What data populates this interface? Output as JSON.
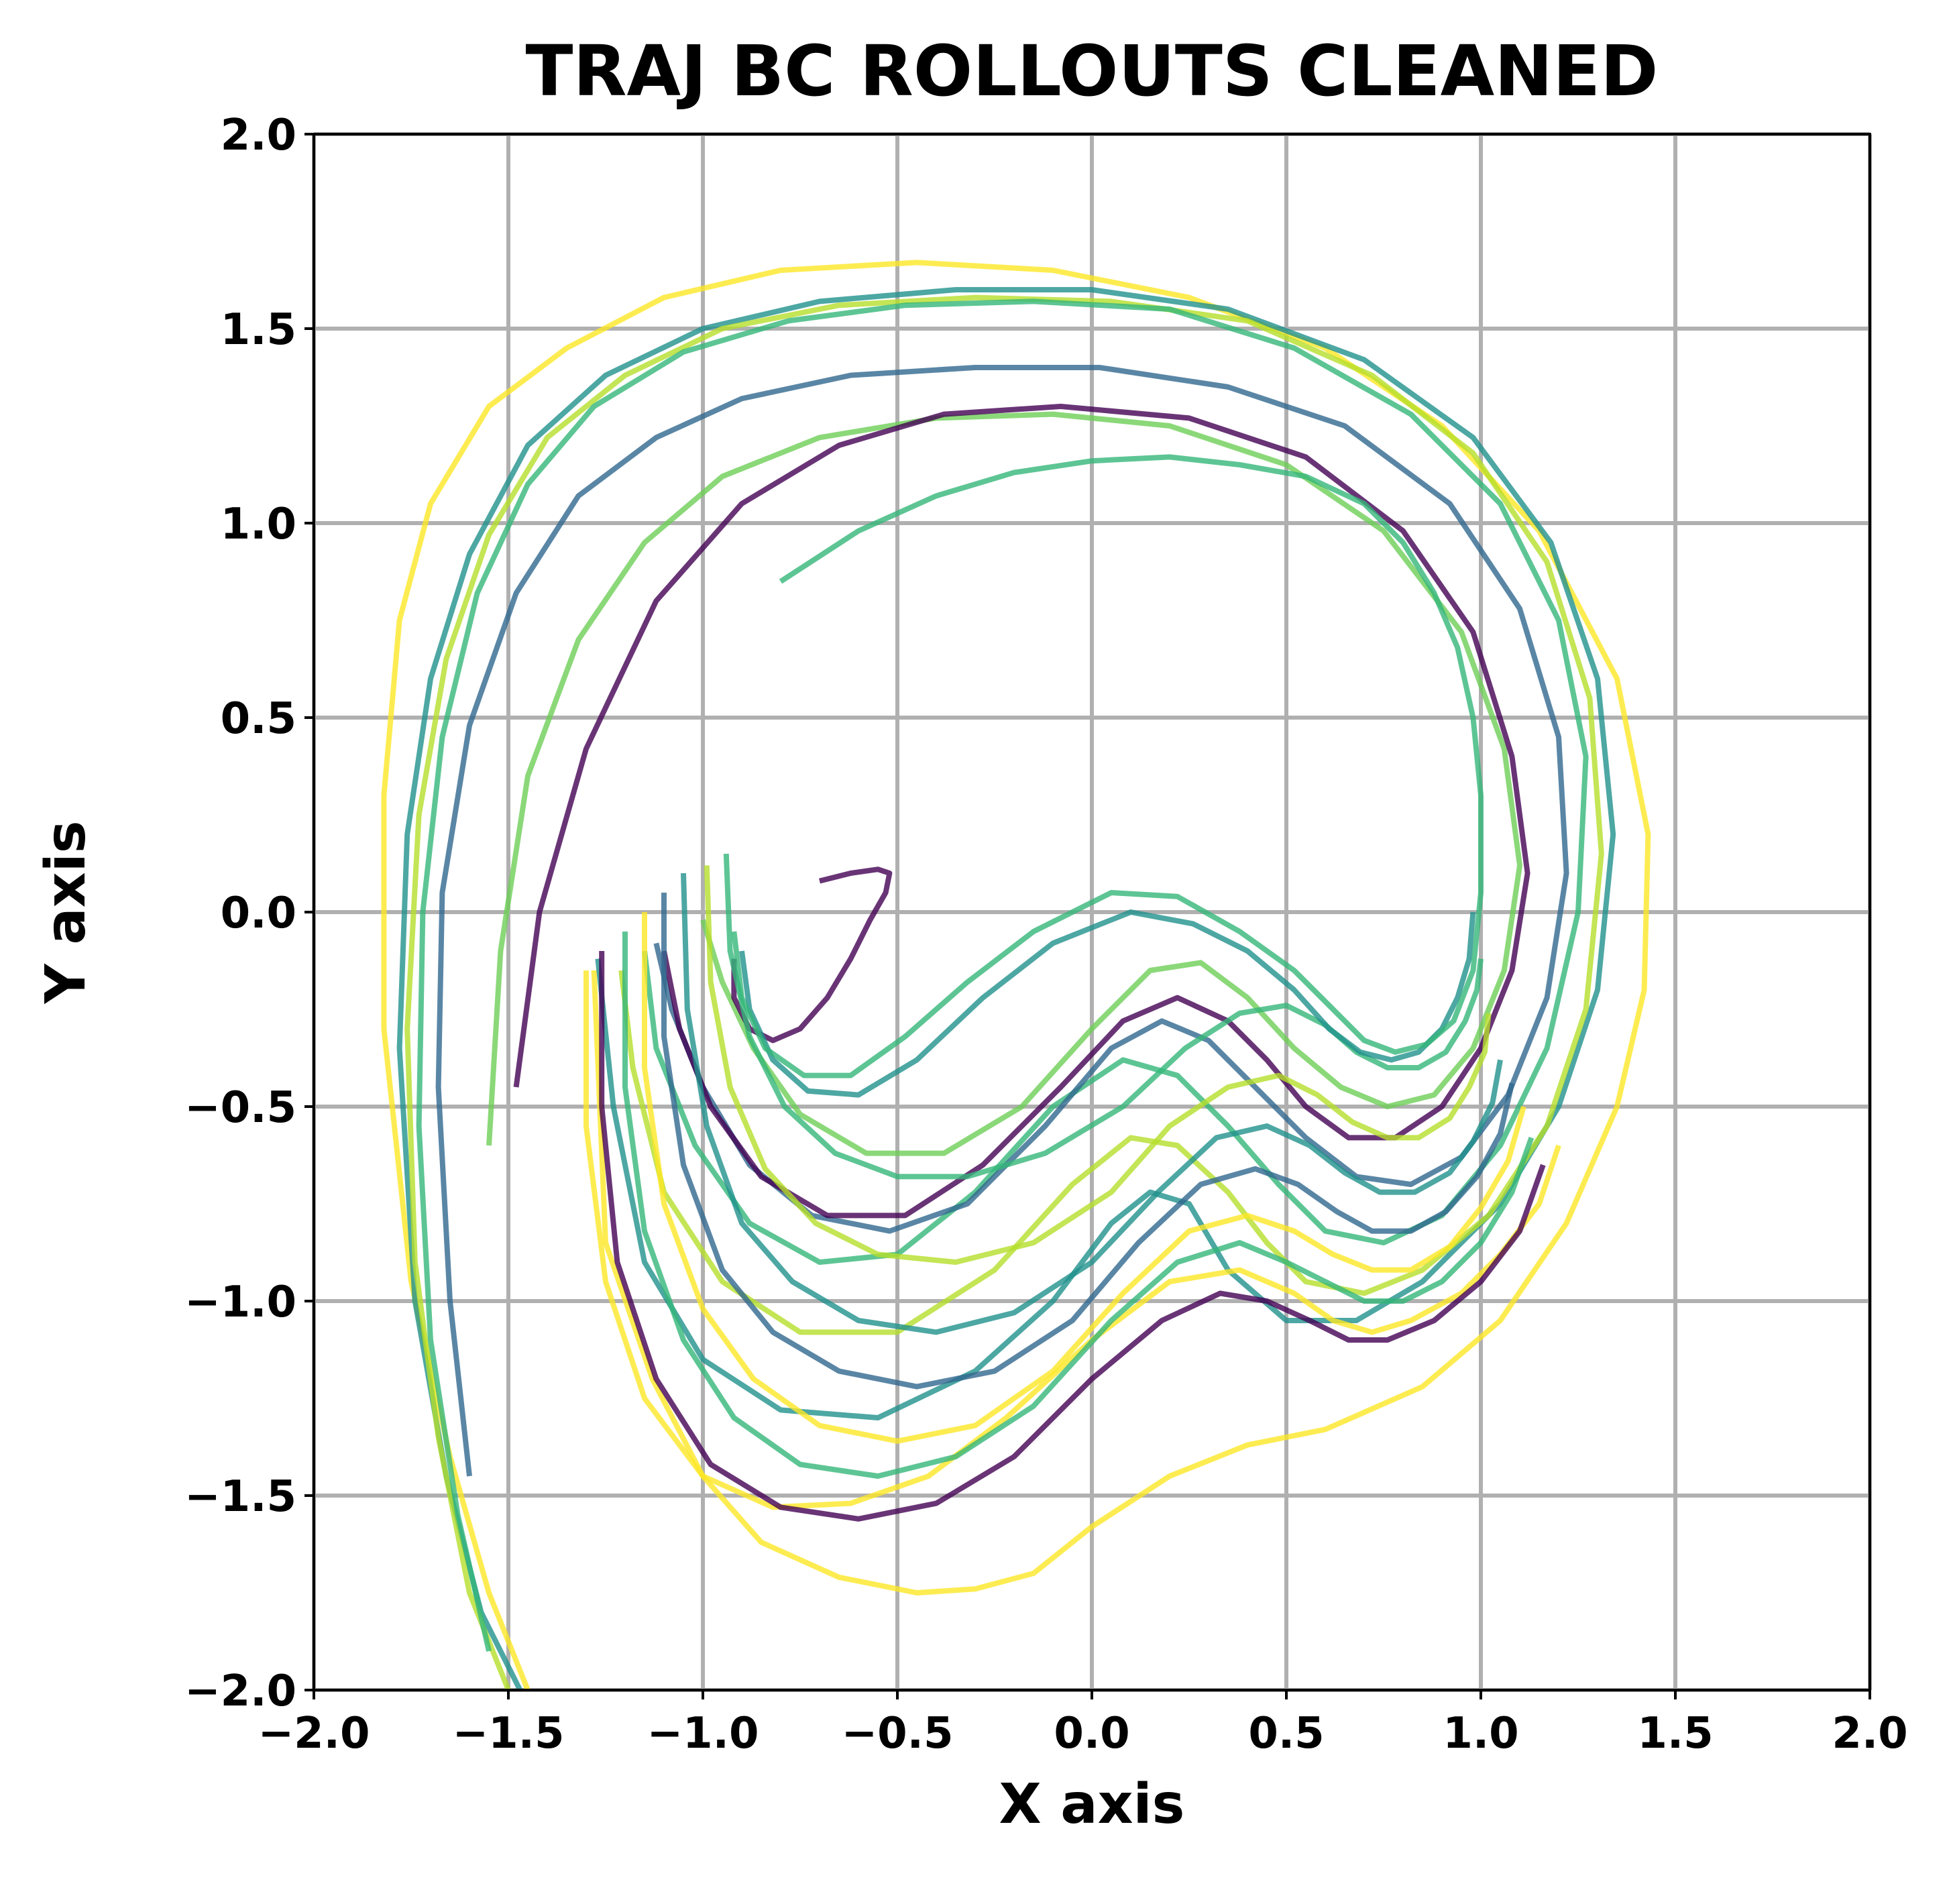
{
  "chart_data": {
    "type": "line",
    "title": "TRAJ BC ROLLOUTS CLEANED",
    "xlabel": "X axis",
    "ylabel": "Y axis",
    "xlim": [
      -2.0,
      2.0
    ],
    "ylim": [
      -2.0,
      2.0
    ],
    "xticks": [
      "−2.0",
      "−1.5",
      "−1.0",
      "−0.5",
      "0.0",
      "0.5",
      "1.0",
      "1.5",
      "2.0"
    ],
    "yticks": [
      "−2.0",
      "−1.5",
      "−1.0",
      "−0.5",
      "0.0",
      "0.5",
      "1.0",
      "1.5",
      "2.0"
    ],
    "grid": true,
    "colormap": "viridis",
    "colors": {
      "purple": "#440154",
      "blue": "#31688e",
      "teal": "#21918c",
      "green": "#35b779",
      "lightgreen": "#6ece58",
      "lime": "#b5de2b",
      "yellow": "#fde725",
      "gold": "#e8b82a",
      "grid": "#b0b0b0"
    },
    "series": [
      {
        "color": "#fde725",
        "x": [
          -1.45,
          -1.55,
          -1.65,
          -1.75,
          -1.82,
          -1.82,
          -1.78,
          -1.7,
          -1.55,
          -1.35,
          -1.1,
          -0.8,
          -0.45,
          -0.1,
          0.25,
          0.6,
          0.9,
          1.15,
          1.35,
          1.43,
          1.42,
          1.35,
          1.22,
          1.05,
          0.85,
          0.6,
          0.4,
          0.2,
          0.0,
          -0.15,
          -0.3,
          -0.45,
          -0.65,
          -0.85,
          -1.0,
          -1.13,
          -1.25,
          -1.28
        ],
        "y": [
          -2.0,
          -1.75,
          -1.4,
          -0.95,
          -0.3,
          0.3,
          0.75,
          1.05,
          1.3,
          1.45,
          1.58,
          1.65,
          1.67,
          1.65,
          1.58,
          1.45,
          1.25,
          0.98,
          0.6,
          0.2,
          -0.2,
          -0.5,
          -0.8,
          -1.05,
          -1.22,
          -1.33,
          -1.37,
          -1.45,
          -1.58,
          -1.7,
          -1.74,
          -1.75,
          -1.71,
          -1.62,
          -1.45,
          -1.2,
          -0.85,
          -0.15
        ]
      },
      {
        "color": "#21918c",
        "x": [
          -1.47,
          -1.57,
          -1.66,
          -1.74,
          -1.78,
          -1.76,
          -1.7,
          -1.6,
          -1.45,
          -1.25,
          -1.0,
          -0.7,
          -0.35,
          0.0,
          0.35,
          0.7,
          0.98,
          1.18,
          1.3,
          1.34,
          1.3,
          1.2,
          1.05,
          0.85,
          0.68,
          0.5,
          0.35,
          0.25,
          0.15,
          0.05,
          -0.1,
          -0.3,
          -0.55,
          -0.8,
          -1.0,
          -1.15,
          -1.23,
          -1.27
        ],
        "y": [
          -2.0,
          -1.8,
          -1.45,
          -1.0,
          -0.35,
          0.2,
          0.6,
          0.92,
          1.2,
          1.38,
          1.5,
          1.57,
          1.6,
          1.6,
          1.55,
          1.42,
          1.22,
          0.95,
          0.6,
          0.2,
          -0.2,
          -0.5,
          -0.75,
          -0.95,
          -1.05,
          -1.05,
          -0.92,
          -0.75,
          -0.72,
          -0.8,
          -1.0,
          -1.18,
          -1.3,
          -1.28,
          -1.15,
          -0.9,
          -0.5,
          -0.12
        ]
      },
      {
        "color": "#b5de2b",
        "x": [
          -1.5,
          -1.6,
          -1.68,
          -1.74,
          -1.76,
          -1.73,
          -1.66,
          -1.55,
          -1.4,
          -1.2,
          -0.95,
          -0.65,
          -0.3,
          0.05,
          0.4,
          0.72,
          0.98,
          1.17,
          1.28,
          1.31,
          1.27,
          1.17,
          1.02,
          0.85,
          0.7,
          0.55,
          0.45,
          0.35,
          0.22,
          0.1,
          -0.05,
          -0.25,
          -0.5,
          -0.75,
          -0.95,
          -1.1,
          -1.18,
          -1.21
        ],
        "y": [
          -2.0,
          -1.75,
          -1.35,
          -0.9,
          -0.3,
          0.25,
          0.65,
          0.97,
          1.22,
          1.38,
          1.5,
          1.56,
          1.58,
          1.57,
          1.52,
          1.38,
          1.18,
          0.9,
          0.55,
          0.15,
          -0.25,
          -0.55,
          -0.78,
          -0.92,
          -0.98,
          -0.95,
          -0.85,
          -0.72,
          -0.6,
          -0.58,
          -0.7,
          -0.92,
          -1.08,
          -1.08,
          -0.95,
          -0.72,
          -0.4,
          -0.15
        ]
      },
      {
        "color": "#35b779",
        "x": [
          -1.55,
          -1.63,
          -1.7,
          -1.73,
          -1.72,
          -1.67,
          -1.58,
          -1.45,
          -1.28,
          -1.05,
          -0.78,
          -0.48,
          -0.15,
          0.2,
          0.52,
          0.82,
          1.05,
          1.2,
          1.27,
          1.25,
          1.17,
          1.05,
          0.9,
          0.75,
          0.6,
          0.48,
          0.35,
          0.22,
          0.08,
          -0.1,
          -0.3,
          -0.5,
          -0.7,
          -0.88,
          -1.02,
          -1.12,
          -1.15
        ],
        "y": [
          -1.9,
          -1.55,
          -1.1,
          -0.55,
          0.0,
          0.45,
          0.82,
          1.1,
          1.3,
          1.44,
          1.52,
          1.56,
          1.57,
          1.55,
          1.45,
          1.28,
          1.05,
          0.75,
          0.4,
          0.0,
          -0.35,
          -0.6,
          -0.78,
          -0.85,
          -0.82,
          -0.7,
          -0.55,
          -0.42,
          -0.38,
          -0.5,
          -0.72,
          -0.88,
          -0.9,
          -0.8,
          -0.6,
          -0.35,
          -0.1
        ]
      },
      {
        "color": "#31688e",
        "x": [
          -1.6,
          -1.65,
          -1.68,
          -1.67,
          -1.6,
          -1.48,
          -1.32,
          -1.12,
          -0.9,
          -0.62,
          -0.3,
          0.02,
          0.35,
          0.65,
          0.92,
          1.1,
          1.2,
          1.22,
          1.17,
          1.07,
          0.95,
          0.82,
          0.68,
          0.55,
          0.42,
          0.3,
          0.18,
          0.05,
          -0.12,
          -0.32,
          -0.52,
          -0.72,
          -0.88,
          -1.0,
          -1.08,
          -1.12
        ],
        "y": [
          -1.45,
          -1.0,
          -0.45,
          0.05,
          0.48,
          0.82,
          1.07,
          1.22,
          1.32,
          1.38,
          1.4,
          1.4,
          1.35,
          1.25,
          1.05,
          0.78,
          0.45,
          0.1,
          -0.22,
          -0.47,
          -0.63,
          -0.7,
          -0.68,
          -0.58,
          -0.45,
          -0.33,
          -0.28,
          -0.35,
          -0.55,
          -0.75,
          -0.82,
          -0.78,
          -0.65,
          -0.45,
          -0.25,
          -0.08
        ]
      },
      {
        "color": "#6ece58",
        "x": [
          -1.55,
          -1.52,
          -1.45,
          -1.32,
          -1.15,
          -0.95,
          -0.7,
          -0.4,
          -0.1,
          0.2,
          0.5,
          0.75,
          0.95,
          1.06,
          1.1,
          1.06,
          0.98,
          0.88,
          0.76,
          0.64,
          0.52,
          0.4,
          0.28,
          0.15,
          0.0,
          -0.18,
          -0.38,
          -0.58,
          -0.75,
          -0.87,
          -0.95,
          -1.0
        ],
        "y": [
          -0.6,
          -0.1,
          0.35,
          0.7,
          0.95,
          1.12,
          1.22,
          1.27,
          1.28,
          1.25,
          1.15,
          0.98,
          0.72,
          0.42,
          0.12,
          -0.15,
          -0.35,
          -0.47,
          -0.5,
          -0.45,
          -0.35,
          -0.22,
          -0.13,
          -0.15,
          -0.3,
          -0.5,
          -0.62,
          -0.62,
          -0.52,
          -0.35,
          -0.18,
          -0.02
        ]
      },
      {
        "color": "#440154",
        "x": [
          -1.48,
          -1.42,
          -1.3,
          -1.12,
          -0.9,
          -0.65,
          -0.38,
          -0.08,
          0.25,
          0.55,
          0.8,
          0.98,
          1.08,
          1.12,
          1.08,
          1.0,
          0.9,
          0.78,
          0.66,
          0.55,
          0.45,
          0.35,
          0.22,
          0.08,
          -0.08,
          -0.28,
          -0.48,
          -0.68,
          -0.85,
          -0.98,
          -1.06,
          -1.1
        ],
        "y": [
          -0.45,
          0.0,
          0.42,
          0.8,
          1.05,
          1.2,
          1.28,
          1.3,
          1.27,
          1.17,
          0.98,
          0.72,
          0.4,
          0.1,
          -0.15,
          -0.35,
          -0.5,
          -0.58,
          -0.58,
          -0.5,
          -0.38,
          -0.28,
          -0.22,
          -0.28,
          -0.45,
          -0.65,
          -0.78,
          -0.78,
          -0.68,
          -0.5,
          -0.3,
          -0.1
        ]
      },
      {
        "color": "#440154",
        "x": [
          -0.92,
          -0.92,
          -0.88,
          -0.82,
          -0.75,
          -0.68,
          -0.62,
          -0.57,
          -0.53,
          -0.52,
          -0.55,
          -0.62,
          -0.7
        ],
        "y": [
          -0.12,
          -0.22,
          -0.3,
          -0.33,
          -0.3,
          -0.22,
          -0.12,
          -0.02,
          0.05,
          0.1,
          0.11,
          0.1,
          0.08
        ]
      },
      {
        "color": "#fde725",
        "x": [
          -1.3,
          -1.3,
          -1.25,
          -1.15,
          -1.0,
          -0.82,
          -0.62,
          -0.42,
          -0.22,
          0.0,
          0.2,
          0.38,
          0.52,
          0.62,
          0.72,
          0.82,
          0.95,
          1.05,
          1.15,
          1.2
        ],
        "y": [
          -0.15,
          -0.55,
          -0.95,
          -1.25,
          -1.45,
          -1.53,
          -1.52,
          -1.45,
          -1.3,
          -1.1,
          -0.95,
          -0.92,
          -0.98,
          -1.05,
          -1.08,
          -1.05,
          -0.98,
          -0.88,
          -0.75,
          -0.6
        ]
      },
      {
        "color": "#440154",
        "x": [
          -1.26,
          -1.26,
          -1.22,
          -1.12,
          -0.98,
          -0.8,
          -0.6,
          -0.4,
          -0.2,
          0.0,
          0.18,
          0.33,
          0.45,
          0.56,
          0.66,
          0.76,
          0.88,
          1.0,
          1.1,
          1.16
        ],
        "y": [
          -0.1,
          -0.5,
          -0.9,
          -1.2,
          -1.42,
          -1.53,
          -1.56,
          -1.52,
          -1.4,
          -1.2,
          -1.05,
          -0.98,
          -1.0,
          -1.05,
          -1.1,
          -1.1,
          -1.05,
          -0.95,
          -0.82,
          -0.65
        ]
      },
      {
        "color": "#35b779",
        "x": [
          -1.2,
          -1.2,
          -1.15,
          -1.05,
          -0.92,
          -0.75,
          -0.55,
          -0.35,
          -0.15,
          0.05,
          0.22,
          0.38,
          0.5,
          0.6,
          0.7,
          0.8,
          0.9,
          1.0,
          1.08,
          1.13
        ],
        "y": [
          -0.05,
          -0.45,
          -0.82,
          -1.1,
          -1.3,
          -1.42,
          -1.45,
          -1.4,
          -1.27,
          -1.05,
          -0.9,
          -0.85,
          -0.9,
          -0.95,
          -1.0,
          -1.0,
          -0.95,
          -0.85,
          -0.72,
          -0.58
        ]
      },
      {
        "color": "#fde725",
        "x": [
          -1.15,
          -1.15,
          -1.1,
          -1.0,
          -0.87,
          -0.7,
          -0.5,
          -0.3,
          -0.1,
          0.08,
          0.25,
          0.4,
          0.52,
          0.62,
          0.72,
          0.82,
          0.92,
          1.0,
          1.07,
          1.11
        ],
        "y": [
          0.0,
          -0.4,
          -0.75,
          -1.02,
          -1.2,
          -1.32,
          -1.36,
          -1.32,
          -1.18,
          -0.98,
          -0.82,
          -0.78,
          -0.82,
          -0.88,
          -0.92,
          -0.92,
          -0.86,
          -0.76,
          -0.64,
          -0.5
        ]
      },
      {
        "color": "#31688e",
        "x": [
          -1.1,
          -1.1,
          -1.05,
          -0.95,
          -0.82,
          -0.65,
          -0.45,
          -0.25,
          -0.05,
          0.12,
          0.28,
          0.42,
          0.53,
          0.63,
          0.72,
          0.82,
          0.91,
          0.99,
          1.05,
          1.08
        ],
        "y": [
          0.05,
          -0.32,
          -0.65,
          -0.92,
          -1.08,
          -1.18,
          -1.22,
          -1.18,
          -1.05,
          -0.85,
          -0.7,
          -0.66,
          -0.7,
          -0.77,
          -0.82,
          -0.82,
          -0.77,
          -0.68,
          -0.57,
          -0.44
        ]
      },
      {
        "color": "#21918c",
        "x": [
          -1.05,
          -1.04,
          -0.99,
          -0.9,
          -0.77,
          -0.6,
          -0.4,
          -0.2,
          0.0,
          0.17,
          0.32,
          0.45,
          0.56,
          0.65,
          0.74,
          0.83,
          0.92,
          0.98,
          1.03,
          1.05
        ],
        "y": [
          0.1,
          -0.25,
          -0.55,
          -0.8,
          -0.95,
          -1.05,
          -1.08,
          -1.03,
          -0.9,
          -0.72,
          -0.58,
          -0.55,
          -0.6,
          -0.67,
          -0.72,
          -0.72,
          -0.67,
          -0.59,
          -0.49,
          -0.38
        ]
      },
      {
        "color": "#b5de2b",
        "x": [
          -0.99,
          -0.98,
          -0.93,
          -0.84,
          -0.71,
          -0.55,
          -0.35,
          -0.15,
          0.05,
          0.2,
          0.35,
          0.48,
          0.58,
          0.67,
          0.76,
          0.84,
          0.92,
          0.97,
          1.01,
          1.02
        ],
        "y": [
          0.12,
          -0.18,
          -0.45,
          -0.66,
          -0.8,
          -0.88,
          -0.9,
          -0.85,
          -0.72,
          -0.55,
          -0.45,
          -0.42,
          -0.47,
          -0.54,
          -0.58,
          -0.58,
          -0.53,
          -0.45,
          -0.36,
          -0.26
        ]
      },
      {
        "color": "#35b779",
        "x": [
          -0.94,
          -0.93,
          -0.88,
          -0.79,
          -0.66,
          -0.5,
          -0.32,
          -0.12,
          0.08,
          0.24,
          0.38,
          0.5,
          0.6,
          0.68,
          0.76,
          0.84,
          0.91,
          0.96,
          0.99,
          1.0
        ],
        "y": [
          0.15,
          -0.1,
          -0.32,
          -0.5,
          -0.62,
          -0.68,
          -0.68,
          -0.62,
          -0.5,
          -0.35,
          -0.26,
          -0.24,
          -0.29,
          -0.36,
          -0.4,
          -0.4,
          -0.36,
          -0.28,
          -0.2,
          -0.12
        ]
      },
      {
        "color": "#21918c",
        "x": [
          -0.9,
          -0.88,
          -0.82,
          -0.73,
          -0.6,
          -0.45,
          -0.28,
          -0.1,
          0.1,
          0.26,
          0.4,
          0.52,
          0.61,
          0.69,
          0.77,
          0.84,
          0.9,
          0.94,
          0.97,
          0.98
        ],
        "y": [
          -0.1,
          -0.25,
          -0.38,
          -0.46,
          -0.47,
          -0.38,
          -0.22,
          -0.08,
          0.0,
          -0.03,
          -0.1,
          -0.2,
          -0.3,
          -0.36,
          -0.38,
          -0.36,
          -0.3,
          -0.22,
          -0.12,
          0.0
        ]
      },
      {
        "color": "#35b779",
        "x": [
          -0.92,
          -0.9,
          -0.84,
          -0.74,
          -0.62,
          -0.48,
          -0.32,
          -0.15,
          0.05,
          0.22,
          0.38,
          0.52,
          0.62,
          0.7,
          0.78,
          0.86,
          0.93,
          0.98,
          1.0,
          1.0,
          0.98,
          0.94,
          0.88,
          0.8,
          0.7,
          0.55,
          0.38,
          0.2,
          0.0,
          -0.2,
          -0.4,
          -0.6,
          -0.8
        ],
        "y": [
          -0.05,
          -0.22,
          -0.35,
          -0.42,
          -0.42,
          -0.32,
          -0.18,
          -0.05,
          0.05,
          0.04,
          -0.05,
          -0.15,
          -0.25,
          -0.33,
          -0.36,
          -0.34,
          -0.28,
          -0.15,
          0.05,
          0.3,
          0.5,
          0.68,
          0.82,
          0.95,
          1.05,
          1.12,
          1.15,
          1.17,
          1.16,
          1.13,
          1.07,
          0.98,
          0.85
        ]
      }
    ]
  }
}
